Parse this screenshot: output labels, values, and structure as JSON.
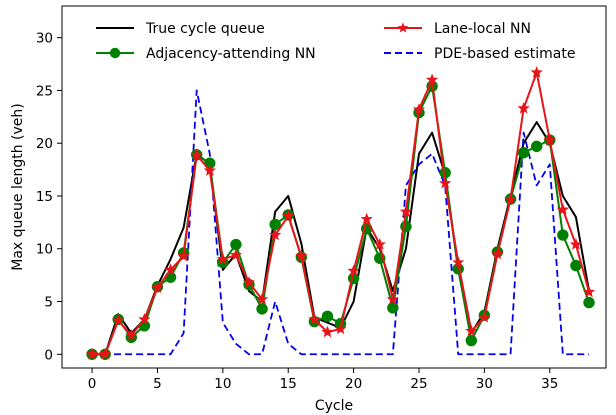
{
  "chart_data": {
    "type": "line",
    "xlabel": "Cycle",
    "ylabel": "Max queue length (veh)",
    "xlim": [
      -2.3,
      39.3
    ],
    "ylim": [
      -1.3,
      33.0
    ],
    "xticks": [
      0,
      5,
      10,
      15,
      20,
      25,
      30,
      35
    ],
    "yticks": [
      0,
      5,
      10,
      15,
      20,
      25,
      30
    ],
    "grid": false,
    "legend_position": "top",
    "x": [
      0,
      1,
      2,
      3,
      4,
      5,
      6,
      7,
      8,
      9,
      10,
      11,
      12,
      13,
      14,
      15,
      16,
      17,
      18,
      19,
      20,
      21,
      22,
      23,
      24,
      25,
      26,
      27,
      28,
      29,
      30,
      31,
      32,
      33,
      34,
      35,
      36,
      37,
      38
    ],
    "series": [
      {
        "name": "True cycle queue",
        "color": "#000000",
        "style": "solid",
        "marker": "none",
        "values": [
          0,
          0,
          3.8,
          2,
          3.3,
          6.5,
          9,
          12,
          19,
          18,
          8,
          9.5,
          6,
          5,
          13.5,
          15,
          10.5,
          3.5,
          3,
          2.5,
          5,
          12,
          10,
          6,
          10,
          19,
          21,
          17,
          8,
          2,
          4,
          10,
          15,
          20,
          22,
          20,
          15,
          13,
          6
        ]
      },
      {
        "name": "Adjacency-attending NN",
        "color": "#008000",
        "style": "solid",
        "marker": "circle",
        "values": [
          0,
          0,
          3.3,
          1.6,
          2.7,
          6.4,
          7.3,
          9.6,
          18.9,
          18.1,
          8.7,
          10.4,
          6.6,
          4.3,
          12.3,
          13.2,
          9.2,
          3.1,
          3.6,
          2.9,
          7.2,
          11.9,
          9.1,
          4.4,
          12.1,
          22.9,
          25.4,
          17.2,
          8.1,
          1.3,
          3.7,
          9.7,
          14.7,
          19.1,
          19.7,
          20.3,
          11.3,
          8.4,
          4.9
        ]
      },
      {
        "name": "Lane-local NN",
        "color": "#e8141a",
        "style": "solid",
        "marker": "star",
        "values": [
          0,
          0,
          3.2,
          1.8,
          3.3,
          6.3,
          8,
          9.3,
          18.9,
          17.4,
          9,
          9.4,
          6.8,
          5.2,
          11.3,
          13.1,
          9.3,
          3.3,
          2.1,
          2.4,
          7.9,
          12.8,
          10.4,
          5.2,
          13.5,
          23.2,
          26,
          16.2,
          8.7,
          2.2,
          3.5,
          9.5,
          14.7,
          23.3,
          26.7,
          20.3,
          13.7,
          10.4,
          5.9
        ]
      },
      {
        "name": "PDE-based estimate",
        "color": "#0000ee",
        "style": "dashed",
        "marker": "none",
        "values": [
          0,
          0,
          0,
          0,
          0,
          0,
          0,
          2,
          25,
          19,
          3,
          1,
          0,
          0,
          5,
          1,
          0,
          0,
          0,
          0,
          0,
          0,
          0,
          0,
          16,
          18,
          19,
          16,
          0,
          0,
          0,
          0,
          0,
          21,
          16,
          18,
          0,
          0,
          0
        ]
      }
    ]
  }
}
